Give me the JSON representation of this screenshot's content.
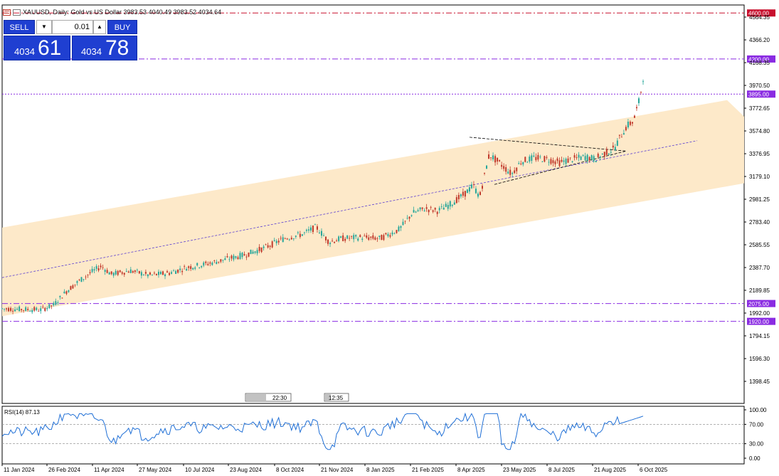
{
  "header": {
    "symbol_text": "XAUUSD, Daily: Gold vs US Dollar  3983.53 4040.49 3983.52 4034.64"
  },
  "trade_panel": {
    "sell_label": "SELL",
    "buy_label": "BUY",
    "lot_value": "0.01",
    "dropdown_glyph": "▼",
    "up_glyph": "▲",
    "sell_price_small": "4034",
    "sell_price_big": "61",
    "buy_price_small": "4034",
    "buy_price_big": "78"
  },
  "chart_data": {
    "type": "candlestick",
    "symbol": "XAUUSD",
    "timeframe": "Daily",
    "price_axis_ticks": [
      "4564.35",
      "4366.20",
      "4168.35",
      "3970.50",
      "3772.65",
      "3574.80",
      "3376.95",
      "3179.10",
      "2981.25",
      "2783.40",
      "2585.55",
      "2387.70",
      "2189.85",
      "1992.00",
      "1794.15",
      "1596.30",
      "1398.45"
    ],
    "price_levels": [
      {
        "label": "4600.00",
        "value": 4600,
        "color": "#c8102e",
        "style": "dash-dot"
      },
      {
        "label": "4200.00",
        "value": 4200,
        "color": "#8a2be2",
        "style": "dash-dot"
      },
      {
        "label": "3895.00",
        "value": 3895,
        "color": "#8a2be2",
        "style": "dotted"
      },
      {
        "label": "2075.00",
        "value": 2075,
        "color": "#8a2be2",
        "style": "dash-dot"
      },
      {
        "label": "1920.00",
        "value": 1920,
        "color": "#8a2be2",
        "style": "dash-dot"
      }
    ],
    "date_labels": [
      "11 Jan 2024",
      "26 Feb 2024",
      "11 Apr 2024",
      "27 May 2024",
      "10 Jul 2024",
      "23 Aug 2024",
      "8 Oct 2024",
      "21 Nov 2024",
      "8 Jan 2025",
      "21 Feb 2025",
      "8 Apr 2025",
      "23 May 2025",
      "8 Jul 2025",
      "21 Aug 2025",
      "6 Oct 2025"
    ],
    "price_path": [
      [
        0,
        2030
      ],
      [
        0.03,
        2025
      ],
      [
        0.06,
        2020
      ],
      [
        0.08,
        2060
      ],
      [
        0.1,
        2180
      ],
      [
        0.12,
        2270
      ],
      [
        0.14,
        2350
      ],
      [
        0.155,
        2400
      ],
      [
        0.17,
        2330
      ],
      [
        0.2,
        2360
      ],
      [
        0.23,
        2320
      ],
      [
        0.26,
        2340
      ],
      [
        0.29,
        2390
      ],
      [
        0.32,
        2420
      ],
      [
        0.35,
        2460
      ],
      [
        0.38,
        2500
      ],
      [
        0.41,
        2560
      ],
      [
        0.44,
        2640
      ],
      [
        0.47,
        2680
      ],
      [
        0.49,
        2740
      ],
      [
        0.51,
        2610
      ],
      [
        0.53,
        2640
      ],
      [
        0.56,
        2650
      ],
      [
        0.59,
        2640
      ],
      [
        0.62,
        2720
      ],
      [
        0.64,
        2860
      ],
      [
        0.66,
        2900
      ],
      [
        0.68,
        2880
      ],
      [
        0.7,
        2940
      ],
      [
        0.72,
        3020
      ],
      [
        0.735,
        3100
      ],
      [
        0.745,
        3000
      ],
      [
        0.76,
        3370
      ],
      [
        0.775,
        3300
      ],
      [
        0.795,
        3200
      ],
      [
        0.81,
        3310
      ],
      [
        0.83,
        3340
      ],
      [
        0.85,
        3330
      ],
      [
        0.87,
        3300
      ],
      [
        0.89,
        3330
      ],
      [
        0.91,
        3350
      ],
      [
        0.925,
        3330
      ],
      [
        0.94,
        3380
      ],
      [
        0.955,
        3420
      ],
      [
        0.965,
        3530
      ],
      [
        0.975,
        3620
      ],
      [
        0.985,
        3660
      ],
      [
        0.995,
        3860
      ],
      [
        1.0,
        4040
      ]
    ],
    "channel": {
      "fill": "#fde9c9"
    },
    "rsi": {
      "label": "RSI(14) 87.13",
      "period": 14,
      "last": 87.13,
      "levels": [
        70,
        30
      ],
      "axis_ticks": [
        "100.00",
        "70.00",
        "30.00",
        "0.00"
      ],
      "color": "#1f6fd6"
    },
    "time_markers": [
      "22:30",
      "12:35"
    ],
    "up_color": "#26a69a",
    "down_color": "#c0392b"
  }
}
